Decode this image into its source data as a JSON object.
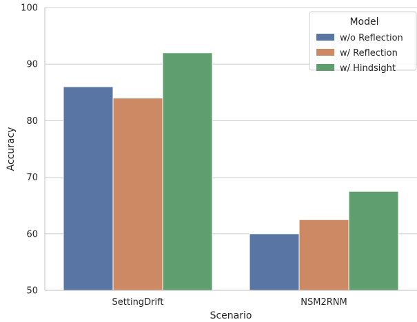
{
  "chart_data": {
    "type": "bar",
    "categories": [
      "SettingDrift",
      "NSM2RNM"
    ],
    "series": [
      {
        "name": "w/o Reflection",
        "values": [
          86,
          60
        ],
        "color": "#5875a4"
      },
      {
        "name": "w/ Reflection",
        "values": [
          84,
          62.5
        ],
        "color": "#cc8963"
      },
      {
        "name": "w/ Hindsight",
        "values": [
          92,
          67.5
        ],
        "color": "#5f9e6e"
      }
    ],
    "xlabel": "Scenario",
    "ylabel": "Accuracy",
    "ylim": [
      50,
      100
    ],
    "yticks": [
      50,
      60,
      70,
      80,
      90,
      100
    ],
    "grid": "horizontal",
    "legend": {
      "title": "Model",
      "placement": "top-right"
    }
  }
}
